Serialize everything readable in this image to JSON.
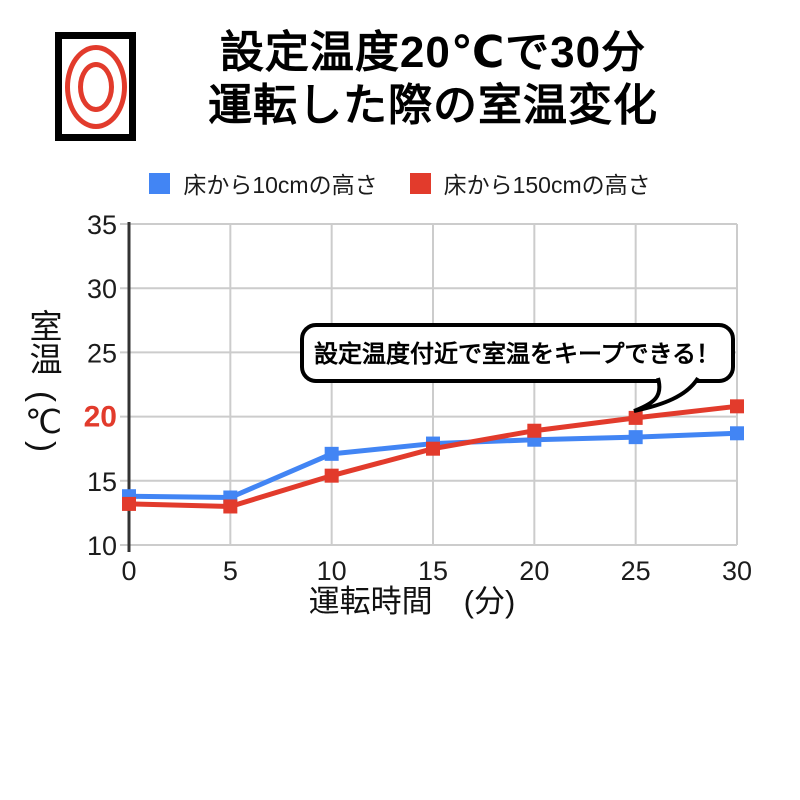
{
  "page": {
    "background": "#ffffff"
  },
  "header": {
    "logo": "double-circle-mark",
    "title_line1": "設定温度20℃で30分",
    "title_line2": "運転した際の室温変化"
  },
  "legend": {
    "items": [
      {
        "label": "床から10cmの高さ",
        "color": "#4285F4"
      },
      {
        "label": "床から150cmの高さ",
        "color": "#E23B2C"
      }
    ]
  },
  "axes": {
    "y_title_main": "室温",
    "y_title_unit": "(℃)",
    "x_title": "運転時間　(分)"
  },
  "annotation": {
    "text": "設定温度付近で室温をキープできる！"
  },
  "colors": {
    "series_blue": "#4285F4",
    "series_red": "#E23B2C",
    "grid": "#CCCCCC",
    "axis_line": "#333333",
    "tick_text": "#1C1C1C",
    "highlight_tick": "#E23B2C",
    "bubble_border": "#000000",
    "bubble_fill": "#FFFFFF"
  },
  "chart_data": {
    "type": "line",
    "title": "設定温度20℃で30分運転した際の室温変化",
    "x": [
      0,
      5,
      10,
      15,
      20,
      25,
      30
    ],
    "series": [
      {
        "name": "床から10cmの高さ",
        "color": "#4285F4",
        "values": [
          13.8,
          13.7,
          17.1,
          17.9,
          18.2,
          18.4,
          18.7
        ]
      },
      {
        "name": "床から150cmの高さ",
        "color": "#E23B2C",
        "values": [
          13.2,
          13.0,
          15.4,
          17.5,
          18.9,
          19.9,
          20.8
        ]
      }
    ],
    "xlabel": "運転時間　(分)",
    "ylabel": "室温(℃)",
    "xlim": [
      0,
      30
    ],
    "ylim": [
      10,
      35
    ],
    "xticks": [
      0,
      5,
      10,
      15,
      20,
      25,
      30
    ],
    "yticks": [
      10,
      15,
      20,
      25,
      30,
      35
    ],
    "highlight_ytick": 20,
    "grid": true,
    "legend_position": "top",
    "annotation": "設定温度付近で室温をキープできる！",
    "marker": "square"
  }
}
